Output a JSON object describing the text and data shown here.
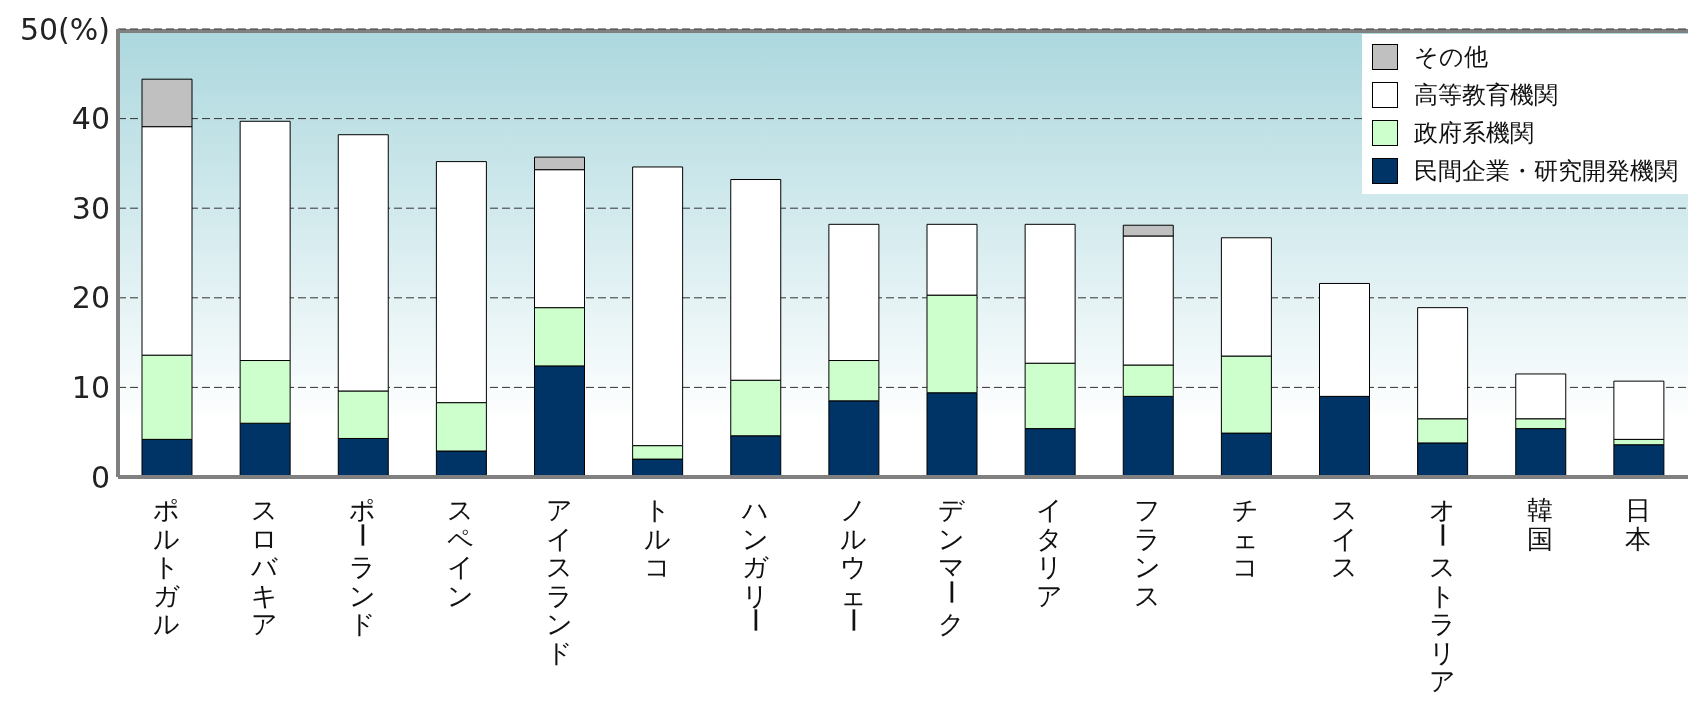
{
  "chart_data": {
    "type": "bar",
    "stacked": true,
    "categories": [
      "ポルトガル",
      "スロバキア",
      "ポーランド",
      "スペイン",
      "アイスランド",
      "トルコ",
      "ハンガリー",
      "ノルウェー",
      "デンマーク",
      "イタリア",
      "フランス",
      "チェコ",
      "スイス",
      "オーストラリア",
      "韓国",
      "日本"
    ],
    "series": [
      {
        "name": "民間企業・研究開発機関",
        "color": "#003366",
        "values": [
          4.2,
          6.0,
          4.3,
          2.9,
          12.4,
          2.0,
          4.6,
          8.5,
          9.4,
          5.4,
          9.0,
          4.9,
          9.0,
          3.8,
          5.4,
          3.6
        ]
      },
      {
        "name": "政府系機関",
        "color": "#ccffcc",
        "values": [
          9.4,
          7.0,
          5.3,
          5.4,
          6.5,
          1.5,
          6.2,
          4.5,
          10.9,
          7.3,
          3.5,
          8.6,
          0,
          2.7,
          1.1,
          0.6
        ]
      },
      {
        "name": "高等教育機関",
        "color": "#ffffff",
        "values": [
          25.5,
          26.7,
          28.6,
          26.9,
          15.4,
          31.1,
          22.4,
          15.2,
          7.9,
          15.5,
          14.4,
          13.2,
          12.6,
          12.4,
          5.0,
          6.5
        ]
      },
      {
        "name": "その他",
        "color": "#c0c0c0",
        "values": [
          5.3,
          0,
          0,
          0,
          1.4,
          0,
          0,
          0,
          0,
          0,
          1.2,
          0,
          0,
          0,
          0,
          0
        ]
      }
    ],
    "ylim": [
      0,
      50
    ],
    "yticks": [
      0,
      10,
      20,
      30,
      40,
      {
        "value": 50,
        "label": "50(%)"
      }
    ],
    "grid": "y",
    "legend": "top right"
  }
}
